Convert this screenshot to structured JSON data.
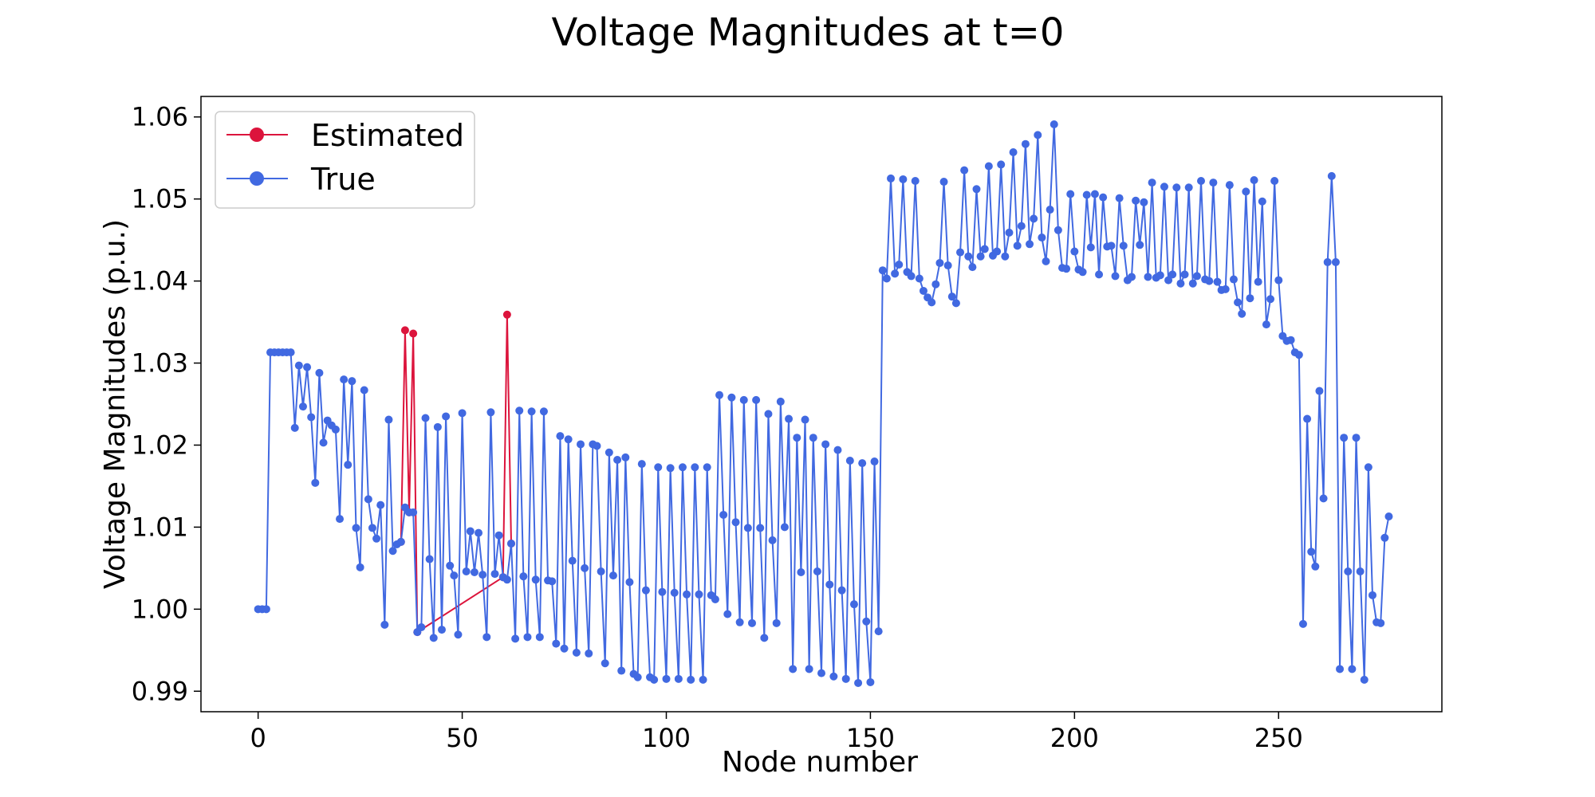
{
  "chart_data": {
    "type": "line",
    "title": "Voltage Magnitudes at t=0",
    "xlabel": "Node number",
    "ylabel": "Voltage Magnitudes (p.u.)",
    "xlim": [
      -14,
      290
    ],
    "ylim": [
      0.9875,
      1.0625
    ],
    "xticks": [
      0,
      50,
      100,
      150,
      200,
      250
    ],
    "yticks": [
      0.99,
      1.0,
      1.01,
      1.02,
      1.03,
      1.04,
      1.05,
      1.06
    ],
    "ytick_labels": [
      "0.99",
      "1.00",
      "1.01",
      "1.02",
      "1.03",
      "1.04",
      "1.05",
      "1.06"
    ],
    "grid": false,
    "legend_position": "top-left",
    "series": [
      {
        "name": "Estimated",
        "color": "#dc143c",
        "x": [
          35,
          36,
          37,
          38,
          39,
          60,
          61,
          62
        ],
        "values": [
          1.0082,
          1.034,
          1.0118,
          1.0336,
          0.9972,
          1.0039,
          1.0359,
          1.008
        ]
      },
      {
        "name": "True",
        "color": "#4169e1",
        "x": [
          0,
          1,
          2,
          3,
          4,
          5,
          6,
          7,
          8,
          9,
          10,
          11,
          12,
          13,
          14,
          15,
          16,
          17,
          18,
          19,
          20,
          21,
          22,
          23,
          24,
          25,
          26,
          27,
          28,
          29,
          30,
          31,
          32,
          33,
          34,
          35,
          36,
          37,
          38,
          39,
          40,
          41,
          42,
          43,
          44,
          45,
          46,
          47,
          48,
          49,
          50,
          51,
          52,
          53,
          54,
          55,
          56,
          57,
          58,
          59,
          60,
          61,
          62,
          63,
          64,
          65,
          66,
          67,
          68,
          69,
          70,
          71,
          72,
          73,
          74,
          75,
          76,
          77,
          78,
          79,
          80,
          81,
          82,
          83,
          84,
          85,
          86,
          87,
          88,
          89,
          90,
          91,
          92,
          93,
          94,
          95,
          96,
          97,
          98,
          99,
          100,
          101,
          102,
          103,
          104,
          105,
          106,
          107,
          108,
          109,
          110,
          111,
          112,
          113,
          114,
          115,
          116,
          117,
          118,
          119,
          120,
          121,
          122,
          123,
          124,
          125,
          126,
          127,
          128,
          129,
          130,
          131,
          132,
          133,
          134,
          135,
          136,
          137,
          138,
          139,
          140,
          141,
          142,
          143,
          144,
          145,
          146,
          147,
          148,
          149,
          150,
          151,
          152,
          153,
          154,
          155,
          156,
          157,
          158,
          159,
          160,
          161,
          162,
          163,
          164,
          165,
          166,
          167,
          168,
          169,
          170,
          171,
          172,
          173,
          174,
          175,
          176,
          177,
          178,
          179,
          180,
          181,
          182,
          183,
          184,
          185,
          186,
          187,
          188,
          189,
          190,
          191,
          192,
          193,
          194,
          195,
          196,
          197,
          198,
          199,
          200,
          201,
          202,
          203,
          204,
          205,
          206,
          207,
          208,
          209,
          210,
          211,
          212,
          213,
          214,
          215,
          216,
          217,
          218,
          219,
          220,
          221,
          222,
          223,
          224,
          225,
          226,
          227,
          228,
          229,
          230,
          231,
          232,
          233,
          234,
          235,
          236,
          237,
          238,
          239,
          240,
          241,
          242,
          243,
          244,
          245,
          246,
          247,
          248,
          249,
          250,
          251,
          252,
          253,
          254,
          255,
          256,
          257,
          258,
          259,
          260,
          261,
          262,
          263,
          264,
          265,
          266,
          267,
          268,
          269,
          270,
          271,
          272,
          273,
          274,
          275,
          276,
          277
        ],
        "values": [
          1.0,
          1.0,
          1.0,
          1.0313,
          1.0313,
          1.0313,
          1.0313,
          1.0313,
          1.0313,
          1.0221,
          1.0297,
          1.0247,
          1.0295,
          1.0234,
          1.0154,
          1.0288,
          1.0203,
          1.023,
          1.0224,
          1.0219,
          1.011,
          1.028,
          1.0176,
          1.0278,
          1.0099,
          1.0051,
          1.0267,
          1.0134,
          1.0099,
          1.0086,
          1.0127,
          0.9981,
          1.0231,
          1.0071,
          1.0079,
          1.0082,
          1.0124,
          1.0118,
          1.0118,
          0.9972,
          0.9978,
          1.0233,
          1.0061,
          0.9965,
          1.0222,
          0.9975,
          1.0235,
          1.0053,
          1.0041,
          0.9969,
          1.0239,
          1.0046,
          1.0095,
          1.0045,
          1.0093,
          1.0042,
          0.9966,
          1.024,
          1.0043,
          1.009,
          1.0039,
          1.0036,
          1.008,
          0.9964,
          1.0242,
          1.004,
          0.9966,
          1.0241,
          1.0036,
          0.9966,
          1.0241,
          1.0035,
          1.0034,
          0.9958,
          1.0211,
          0.9952,
          1.0207,
          1.0059,
          0.9947,
          1.0201,
          1.005,
          0.9946,
          1.0201,
          1.0199,
          1.0046,
          0.9934,
          1.0191,
          1.0041,
          1.0182,
          0.9925,
          1.0185,
          1.0033,
          0.9921,
          0.9917,
          1.0177,
          1.0023,
          0.9917,
          0.9914,
          1.0173,
          1.0021,
          0.9915,
          1.0172,
          1.002,
          0.9915,
          1.0173,
          1.0018,
          0.9914,
          1.0173,
          1.0018,
          0.9914,
          1.0173,
          1.0017,
          1.0012,
          1.0261,
          1.0115,
          0.9994,
          1.0258,
          1.0106,
          0.9984,
          1.0255,
          1.0099,
          0.9983,
          1.0255,
          1.0099,
          0.9965,
          1.0238,
          1.0084,
          0.9983,
          1.0253,
          1.01,
          1.0232,
          0.9927,
          1.0209,
          1.0045,
          1.0231,
          0.9927,
          1.0209,
          1.0046,
          0.9922,
          1.0201,
          1.003,
          0.9918,
          1.0194,
          1.0023,
          0.9915,
          1.0181,
          1.0006,
          0.991,
          1.0178,
          0.9985,
          0.9911,
          1.018,
          0.9973,
          1.0413,
          1.0403,
          1.0525,
          1.0409,
          1.042,
          1.0524,
          1.0411,
          1.0406,
          1.0522,
          1.0403,
          1.0388,
          1.038,
          1.0374,
          1.0396,
          1.0422,
          1.0521,
          1.0419,
          1.0381,
          1.0373,
          1.0435,
          1.0535,
          1.043,
          1.0417,
          1.0512,
          1.043,
          1.0439,
          1.054,
          1.0431,
          1.0436,
          1.0542,
          1.043,
          1.0459,
          1.0557,
          1.0443,
          1.0467,
          1.0567,
          1.0445,
          1.0476,
          1.0578,
          1.0453,
          1.0424,
          1.0487,
          1.0591,
          1.0462,
          1.0416,
          1.0415,
          1.0506,
          1.0436,
          1.0414,
          1.0411,
          1.0505,
          1.0441,
          1.0506,
          1.0408,
          1.0502,
          1.0442,
          1.0443,
          1.0406,
          1.0501,
          1.0443,
          1.0401,
          1.0405,
          1.0498,
          1.0444,
          1.0496,
          1.0405,
          1.052,
          1.0404,
          1.0407,
          1.0515,
          1.0401,
          1.0408,
          1.0514,
          1.0397,
          1.0408,
          1.0514,
          1.0397,
          1.0406,
          1.0522,
          1.0402,
          1.04,
          1.052,
          1.0399,
          1.0389,
          1.039,
          1.0517,
          1.0402,
          1.0374,
          1.036,
          1.0509,
          1.0379,
          1.0523,
          1.0399,
          1.0497,
          1.0347,
          1.0378,
          1.0522,
          1.0401,
          1.0333,
          1.0327,
          1.0328,
          1.0313,
          1.031,
          0.9982,
          1.0232,
          1.007,
          1.0052,
          1.0266,
          1.0135,
          1.0423,
          1.0528,
          1.0423,
          0.9927,
          1.0209,
          1.0046,
          0.9927,
          1.0209,
          1.0046,
          0.9914,
          1.0173,
          1.0017,
          0.9984,
          0.9983,
          1.0087,
          1.0113
        ]
      }
    ]
  }
}
